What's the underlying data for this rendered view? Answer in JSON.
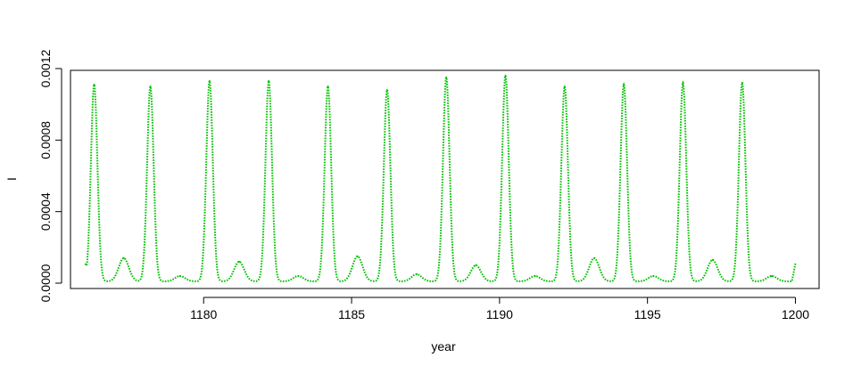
{
  "chart_data": {
    "type": "line",
    "title": "",
    "xlabel": "year",
    "ylabel": "I",
    "xlim": [
      1175.5,
      1200.8
    ],
    "ylim": [
      -3e-05,
      0.00119
    ],
    "x_ticks": [
      1180,
      1185,
      1190,
      1195,
      1200
    ],
    "x_tick_labels": [
      "1180",
      "1185",
      "1190",
      "1195",
      "1200"
    ],
    "y_ticks": [
      0.0,
      0.0004,
      0.0008,
      0.0012
    ],
    "y_tick_labels": [
      "0.0000",
      "0.0004",
      "0.0008",
      "0.0012"
    ],
    "grid": false,
    "line_style": "dotted",
    "x_start": 1176,
    "x_end": 1200,
    "y_start": 0.00011,
    "y_end": 0.00011,
    "baseline": 1e-05,
    "major_peaks": [
      {
        "x": 1176.3,
        "y": 0.00111
      },
      {
        "x": 1178.2,
        "y": 0.0011
      },
      {
        "x": 1180.2,
        "y": 0.00113
      },
      {
        "x": 1182.2,
        "y": 0.00113
      },
      {
        "x": 1184.2,
        "y": 0.0011
      },
      {
        "x": 1186.2,
        "y": 0.00108
      },
      {
        "x": 1188.2,
        "y": 0.00115
      },
      {
        "x": 1190.2,
        "y": 0.00116
      },
      {
        "x": 1192.2,
        "y": 0.0011
      },
      {
        "x": 1194.2,
        "y": 0.00111
      },
      {
        "x": 1196.2,
        "y": 0.00112
      },
      {
        "x": 1198.2,
        "y": 0.00112
      }
    ],
    "minor_peaks": [
      {
        "x": 1177.3,
        "y": 0.00014
      },
      {
        "x": 1179.2,
        "y": 4e-05
      },
      {
        "x": 1181.2,
        "y": 0.00012
      },
      {
        "x": 1183.2,
        "y": 4e-05
      },
      {
        "x": 1185.2,
        "y": 0.00015
      },
      {
        "x": 1187.2,
        "y": 5e-05
      },
      {
        "x": 1189.2,
        "y": 0.0001
      },
      {
        "x": 1191.2,
        "y": 4e-05
      },
      {
        "x": 1193.2,
        "y": 0.00014
      },
      {
        "x": 1195.2,
        "y": 4e-05
      },
      {
        "x": 1197.2,
        "y": 0.00013
      },
      {
        "x": 1199.2,
        "y": 4e-05
      }
    ]
  },
  "colors": {
    "series": "#00c000",
    "axis": "#000000",
    "background": "#ffffff"
  }
}
